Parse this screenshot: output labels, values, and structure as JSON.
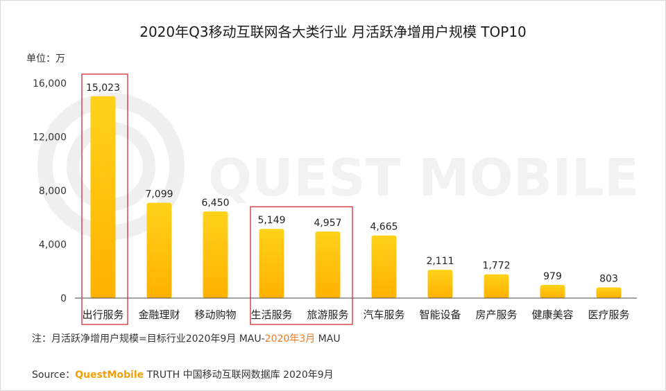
{
  "title": "2020年Q3移动互联网各大类行业 月活跃净增用户规模 TOP10",
  "unit_label": "单位：万",
  "watermark": "QUEST MOBILE",
  "note": {
    "prefix": "注：月活跃净增用户规模=目标行业2020年9月 MAU-",
    "highlight": "2020年3月",
    "suffix": " MAU"
  },
  "source": {
    "prefix": "Source：",
    "brand": "QuestMobile",
    "suffix": " TRUTH 中国移动互联网数据库 2020年9月"
  },
  "colors": {
    "bar_top": "#ffd21a",
    "bar_bottom": "#ffb100",
    "highlight_box": "#d9282f",
    "note_highlight": "#f47a20",
    "brand": "#f2a007"
  },
  "chart_data": {
    "type": "bar",
    "title": "2020年Q3移动互联网各大类行业 月活跃净增用户规模 TOP10",
    "ylabel": "单位：万",
    "ylim": [
      0,
      16000
    ],
    "yticks": [
      0,
      4000,
      8000,
      12000,
      16000
    ],
    "ytick_labels": [
      "0",
      "4,000",
      "8,000",
      "12,000",
      "16,000"
    ],
    "categories": [
      "出行服务",
      "金融理财",
      "移动购物",
      "生活服务",
      "旅游服务",
      "汽车服务",
      "智能设备",
      "房产服务",
      "健康美容",
      "医疗服务"
    ],
    "values": [
      15023,
      7099,
      6450,
      5149,
      4957,
      4665,
      2111,
      1772,
      979,
      803
    ],
    "value_labels": [
      "15,023",
      "7,099",
      "6,450",
      "5,149",
      "4,957",
      "4,665",
      "2,111",
      "1,772",
      "979",
      "803"
    ],
    "highlight_groups": [
      [
        0
      ],
      [
        3,
        4
      ]
    ],
    "grid": false
  }
}
